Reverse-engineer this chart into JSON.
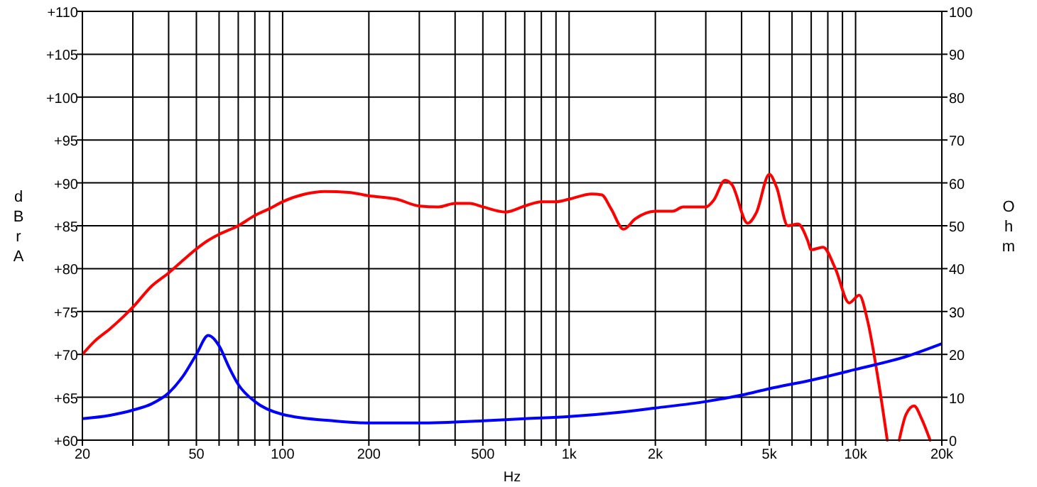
{
  "chart_data": {
    "type": "line",
    "xlabel": "Hz",
    "ylabel": "dBrA",
    "y2label": "Ohm",
    "log": "x",
    "grid": true,
    "marker": "none",
    "line_style": "solid",
    "xlim": [
      20,
      20000
    ],
    "xticks": [
      20,
      {
        "value": 30,
        "label": null
      },
      {
        "value": 40,
        "label": null
      },
      50,
      {
        "value": 60,
        "label": null
      },
      {
        "value": 70,
        "label": null
      },
      {
        "value": 80,
        "label": null
      },
      {
        "value": 90,
        "label": null
      },
      100,
      200,
      {
        "value": 300,
        "label": null
      },
      {
        "value": 400,
        "label": null
      },
      500,
      {
        "value": 600,
        "label": null
      },
      {
        "value": 700,
        "label": null
      },
      {
        "value": 800,
        "label": null
      },
      {
        "value": 900,
        "label": null
      },
      {
        "value": 1000,
        "label": "1k"
      },
      {
        "value": 2000,
        "label": "2k"
      },
      {
        "value": 3000,
        "label": null
      },
      {
        "value": 4000,
        "label": null
      },
      {
        "value": 5000,
        "label": "5k"
      },
      {
        "value": 6000,
        "label": null
      },
      {
        "value": 7000,
        "label": null
      },
      {
        "value": 8000,
        "label": null
      },
      {
        "value": 9000,
        "label": null
      },
      {
        "value": 10000,
        "label": "10k"
      },
      {
        "value": 20000,
        "label": "20k"
      }
    ],
    "ylim": [
      60,
      110
    ],
    "yticks": [
      {
        "value": 60,
        "label": "+60"
      },
      {
        "value": 65,
        "label": "+65"
      },
      {
        "value": 70,
        "label": "+70"
      },
      {
        "value": 75,
        "label": "+75"
      },
      {
        "value": 80,
        "label": "+80"
      },
      {
        "value": 85,
        "label": "+85"
      },
      {
        "value": 90,
        "label": "+90"
      },
      {
        "value": 95,
        "label": "+95"
      },
      {
        "value": 100,
        "label": "+100"
      },
      {
        "value": 105,
        "label": "+105"
      },
      {
        "value": 110,
        "label": "+110"
      }
    ],
    "y2lim": [
      0,
      100
    ],
    "y2ticks": [
      0,
      10,
      20,
      30,
      40,
      50,
      60,
      70,
      80,
      90,
      100
    ],
    "series": [
      {
        "color": "#ff0000",
        "x": [
          20,
          22,
          25,
          28,
          30,
          35,
          40,
          45,
          50,
          55,
          60,
          70,
          80,
          90,
          100,
          120,
          140,
          170,
          200,
          250,
          300,
          350,
          400,
          450,
          500,
          600,
          700,
          800,
          900,
          1000,
          1200,
          1300,
          1400,
          1550,
          1700,
          2000,
          2300,
          2500,
          3000,
          3200,
          3500,
          3700,
          4200,
          4500,
          5000,
          5300,
          5800,
          6300,
          6800,
          7000,
          7700,
          8500,
          9500,
          10300,
          11000,
          12000,
          12900,
          13500,
          14200,
          15000,
          16000,
          17000,
          18200
        ],
        "values": [
          70,
          71.5,
          73,
          74.5,
          75.5,
          78,
          79.5,
          81,
          82.3,
          83.3,
          84,
          85,
          86.2,
          87,
          87.8,
          88.7,
          89,
          88.9,
          88.5,
          88.1,
          87.3,
          87.2,
          87.6,
          87.6,
          87.2,
          86.6,
          87.3,
          87.8,
          87.8,
          88.1,
          88.7,
          88.6,
          87,
          84.6,
          85.8,
          86.7,
          86.7,
          87.2,
          87.2,
          88,
          90.3,
          89.8,
          85.3,
          86.5,
          91,
          89.5,
          85,
          85.2,
          83.3,
          82.2,
          82.5,
          80,
          76,
          76.9,
          74,
          67,
          60,
          null,
          60,
          63,
          64,
          62.5,
          60
        ]
      },
      {
        "color": "#0000ff",
        "axis": "y2",
        "x": [
          20,
          25,
          30,
          35,
          40,
          45,
          50,
          55,
          60,
          65,
          70,
          80,
          100,
          150,
          200,
          300,
          500,
          700,
          1000,
          1500,
          2000,
          3000,
          4000,
          5000,
          7000,
          10000,
          15000,
          20000
        ],
        "values": [
          5,
          5.8,
          7,
          8.5,
          11,
          15,
          20,
          24.4,
          22,
          17,
          13,
          9,
          6,
          4.5,
          4,
          4,
          4.5,
          5,
          5.5,
          6.5,
          7.5,
          9,
          10.5,
          12,
          14,
          16.5,
          19.5,
          22.5
        ]
      }
    ]
  }
}
